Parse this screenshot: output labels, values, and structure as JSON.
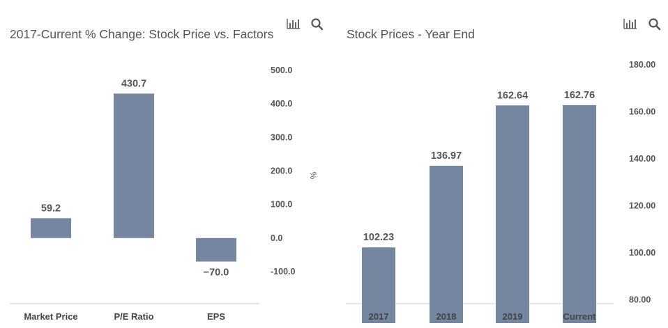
{
  "charts": [
    {
      "title": "2017-Current % Change: Stock Price vs. Factors",
      "icons": [
        "bar-chart-icon",
        "search-icon"
      ]
    },
    {
      "title": "Stock Prices - Year End",
      "icons": [
        "bar-chart-icon",
        "search-icon"
      ]
    }
  ],
  "chart_data": [
    {
      "type": "bar",
      "title": "2017-Current % Change: Stock Price vs. Factors",
      "categories": [
        "Market Price",
        "P/E Ratio",
        "EPS"
      ],
      "values": [
        59.2,
        430.7,
        -70.0
      ],
      "data_labels": [
        "59.2",
        "430.7",
        "−70.0"
      ],
      "ylabel": "%",
      "ylim": [
        -100,
        500
      ],
      "yticks": [
        -100,
        0,
        100,
        200,
        300,
        400,
        500
      ],
      "ytick_labels": [
        "-100.0",
        "0.0",
        "100.0",
        "200.0",
        "300.0",
        "400.0",
        "500.0"
      ],
      "y_axis_side": "right",
      "grid": false,
      "bar_color": "#7586a1"
    },
    {
      "type": "bar",
      "title": "Stock Prices - Year End",
      "categories": [
        "2017",
        "2018",
        "2019",
        "Current"
      ],
      "values": [
        102.23,
        136.97,
        162.64,
        162.76
      ],
      "data_labels": [
        "102.23",
        "136.97",
        "162.64",
        "162.76"
      ],
      "ylabel": "",
      "ylim": [
        70,
        190
      ],
      "yticks": [
        80,
        100,
        120,
        140,
        160,
        180
      ],
      "ytick_labels": [
        "80.00",
        "100.00",
        "120.00",
        "140.00",
        "160.00",
        "180.00"
      ],
      "y_axis_side": "right",
      "grid": false,
      "bar_color": "#7586a1"
    }
  ]
}
